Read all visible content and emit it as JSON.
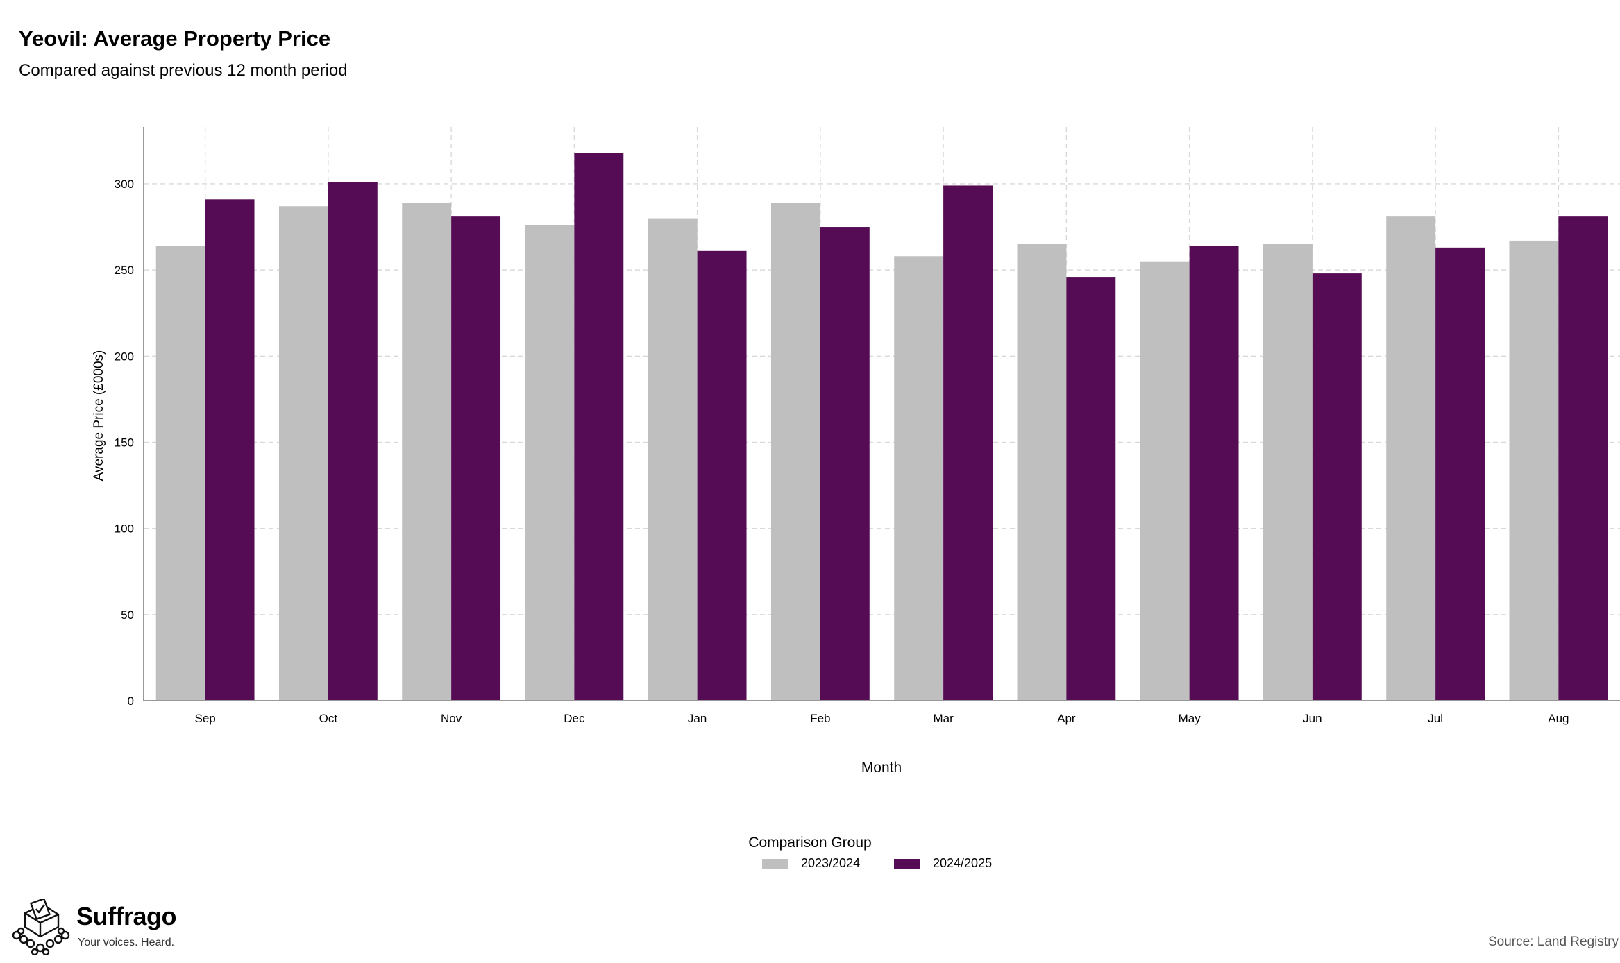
{
  "chart_data": {
    "type": "bar",
    "title": "Yeovil: Average Property Price",
    "subtitle": "Compared against previous 12 month period",
    "xlabel": "Month",
    "ylabel": "Average Price (£000s)",
    "categories": [
      "Sep",
      "Oct",
      "Nov",
      "Dec",
      "Jan",
      "Feb",
      "Mar",
      "Apr",
      "May",
      "Jun",
      "Jul",
      "Aug"
    ],
    "series": [
      {
        "name": "2023/2024",
        "color": "#bfbfbf",
        "values": [
          264,
          287,
          289,
          276,
          280,
          289,
          258,
          265,
          255,
          265,
          281,
          267
        ]
      },
      {
        "name": "2024/2025",
        "color": "#560c54",
        "values": [
          291,
          301,
          281,
          318,
          261,
          275,
          299,
          246,
          264,
          248,
          263,
          281
        ]
      }
    ],
    "yticks": [
      0,
      50,
      100,
      150,
      200,
      250,
      300
    ],
    "ylim": [
      0,
      333
    ],
    "grid": true,
    "legend_title": "Comparison Group",
    "legend_position": "bottom"
  },
  "branding": {
    "name": "Suffrago",
    "tagline": "Your voices. Heard.",
    "logo_icon": "ballot-box-icon"
  },
  "source": "Source: Land Registry"
}
